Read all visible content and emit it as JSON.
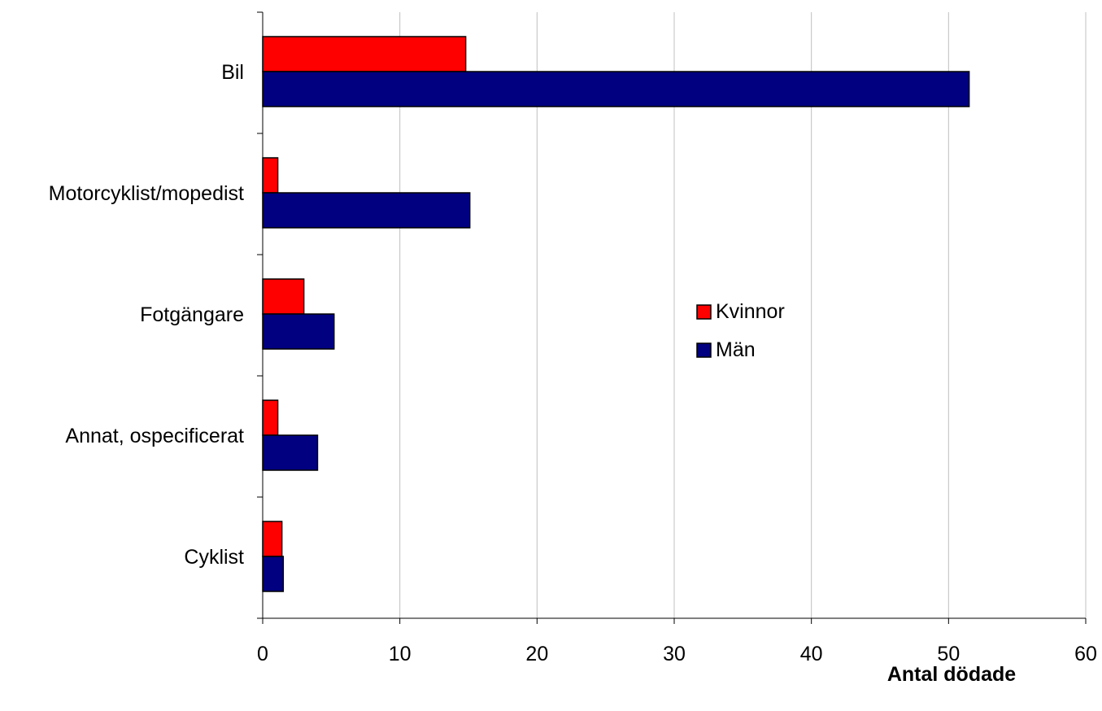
{
  "chart_data": {
    "type": "bar",
    "orientation": "horizontal",
    "categories": [
      "Bil",
      "Motorcyklist/mopedist",
      "Fotgängare",
      "Annat, ospecificerat",
      "Cyklist"
    ],
    "series": [
      {
        "name": "Kvinnor",
        "color": "#ff0000",
        "values": [
          14.8,
          1.1,
          3.0,
          1.1,
          1.4
        ]
      },
      {
        "name": "Män",
        "color": "#000080",
        "values": [
          51.5,
          15.1,
          5.2,
          4.0,
          1.5
        ]
      }
    ],
    "xlabel": "Antal dödade",
    "ylabel": "",
    "xlim": [
      0,
      60
    ],
    "xticks": [
      "0",
      "10",
      "20",
      "30",
      "40",
      "50",
      "60"
    ],
    "grid": "vertical",
    "legend_position": "center-right"
  }
}
